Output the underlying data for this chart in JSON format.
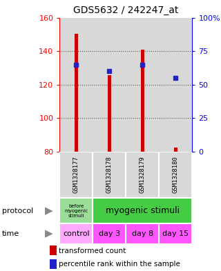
{
  "title": "GDS5632 / 242247_at",
  "samples": [
    "GSM1328177",
    "GSM1328178",
    "GSM1328179",
    "GSM1328180"
  ],
  "transformed_counts": [
    150.5,
    125.5,
    141.0,
    82.5
  ],
  "transformed_mins": [
    80.0,
    80.0,
    80.0,
    80.0
  ],
  "percentile_ranks": [
    65,
    60,
    65,
    55
  ],
  "ylim": [
    80,
    160
  ],
  "yticks_left": [
    80,
    100,
    120,
    140,
    160
  ],
  "yticks_right": [
    0,
    25,
    50,
    75,
    100
  ],
  "ytick_labels_right": [
    "0",
    "25",
    "50",
    "75",
    "100%"
  ],
  "bar_color": "#cc0000",
  "dot_color": "#2222cc",
  "protocol_label_0": "before\nmyogenic\nstimuli",
  "protocol_label_1": "myogenic stimuli",
  "protocol_color_0": "#99dd99",
  "protocol_color_1": "#44cc44",
  "time_labels": [
    "control",
    "day 3",
    "day 8",
    "day 15"
  ],
  "time_color_0": "#ffaaff",
  "time_color_other": "#ff55ff",
  "sample_box_color": "#d8d8d8",
  "legend_red_label": "transformed count",
  "legend_blue_label": "percentile rank within the sample",
  "grid_color": "#555555",
  "background_color": "#ffffff",
  "plot_bg_color": "#d8d8d8",
  "bar_width": 0.12
}
